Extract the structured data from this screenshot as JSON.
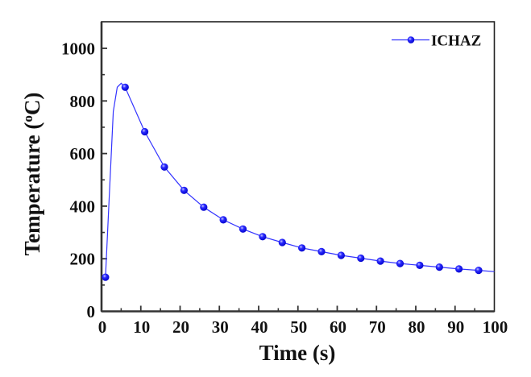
{
  "chart_data": {
    "type": "line",
    "title": "",
    "xlabel": "Time (s)",
    "ylabel_main": "Temperature (",
    "ylabel_sup": "o",
    "ylabel_end": "C)",
    "xlim": [
      0,
      100
    ],
    "ylim": [
      0,
      1100
    ],
    "xticks": [
      0,
      10,
      20,
      30,
      40,
      50,
      60,
      70,
      80,
      90,
      100
    ],
    "xtick_labels": [
      "0",
      "10",
      "20",
      "30",
      "40",
      "50",
      "60",
      "70",
      "80",
      "90",
      "100"
    ],
    "xminor_ticks": [
      5,
      15,
      25,
      35,
      45,
      55,
      65,
      75,
      85,
      95
    ],
    "yticks": [
      0,
      200,
      400,
      600,
      800,
      1000
    ],
    "ytick_labels": [
      "0",
      "200",
      "400",
      "600",
      "800",
      "1000"
    ],
    "yminor_ticks": [
      100,
      300,
      500,
      700,
      900
    ],
    "grid": false,
    "legend_position": "top-right",
    "series": [
      {
        "name": "ICHAZ",
        "color": "#0000ff",
        "line_points": {
          "x": [
            1,
            2,
            3,
            4,
            5,
            6,
            11,
            16,
            21,
            26,
            31,
            36,
            41,
            46,
            51,
            56,
            61,
            66,
            71,
            76,
            81,
            86,
            91,
            96,
            100
          ],
          "y": [
            130,
            450,
            760,
            852,
            867,
            852,
            683,
            549,
            460,
            396,
            348,
            313,
            284,
            262,
            241,
            227,
            213,
            202,
            191,
            182,
            175,
            168,
            161,
            156,
            151
          ]
        },
        "markers": {
          "x": [
            1,
            6,
            11,
            16,
            21,
            26,
            31,
            36,
            41,
            46,
            51,
            56,
            61,
            66,
            71,
            76,
            81,
            86,
            91,
            96
          ],
          "y": [
            130,
            852,
            683,
            549,
            460,
            396,
            348,
            313,
            284,
            262,
            241,
            227,
            213,
            202,
            191,
            182,
            175,
            168,
            161,
            156
          ]
        }
      }
    ]
  }
}
